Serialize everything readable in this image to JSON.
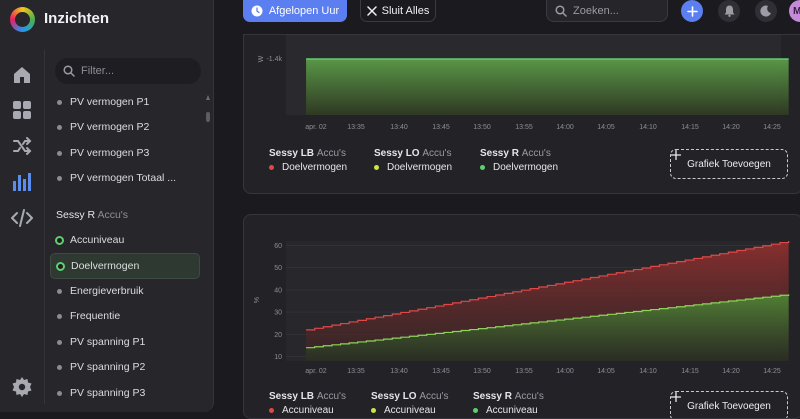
{
  "app": {
    "title": "Inzichten"
  },
  "toolbar": {
    "period_label": "Afgelopen Uur",
    "close_all_label": "Sluit Alles",
    "search_placeholder": "Zoeken...",
    "avatar_initial": "M"
  },
  "sidebar": {
    "filter_placeholder": "Filter...",
    "rail_icons": [
      "home-icon",
      "grid-icon",
      "shuffle-icon",
      "chart-bars-icon",
      "code-icon",
      "gear-icon"
    ],
    "items_top": [
      {
        "label": "PV vermogen P1"
      },
      {
        "label": "PV vermogen P2"
      },
      {
        "label": "PV vermogen P3"
      },
      {
        "label": "PV vermogen Totaal ..."
      }
    ],
    "group": {
      "name": "Sessy R",
      "sub": "Accu's"
    },
    "items_group": [
      {
        "label": "Accuniveau",
        "state": "checked"
      },
      {
        "label": "Doelvermogen",
        "state": "checked-selected"
      },
      {
        "label": "Energieverbruik",
        "state": ""
      },
      {
        "label": "Frequentie",
        "state": ""
      },
      {
        "label": "PV spanning P1",
        "state": ""
      },
      {
        "label": "PV spanning P2",
        "state": ""
      },
      {
        "label": "PV spanning P3",
        "state": ""
      }
    ]
  },
  "cards": [
    {
      "legend": [
        {
          "device": "Sessy LB",
          "group": "Accu's",
          "metric": "Doelvermogen",
          "color": "#e04848"
        },
        {
          "device": "Sessy LO",
          "group": "Accu's",
          "metric": "Doelvermogen",
          "color": "#c7e64a"
        },
        {
          "device": "Sessy R",
          "group": "Accu's",
          "metric": "Doelvermogen",
          "color": "#5fce6e"
        }
      ],
      "add_label": "Grafiek Toevoegen"
    },
    {
      "legend": [
        {
          "device": "Sessy LB",
          "group": "Accu's",
          "metric": "Accuniveau",
          "color": "#e04848"
        },
        {
          "device": "Sessy LO",
          "group": "Accu's",
          "metric": "Accuniveau",
          "color": "#c7e64a"
        },
        {
          "device": "Sessy R",
          "group": "Accu's",
          "metric": "Accuniveau",
          "color": "#5fce6e"
        }
      ],
      "add_label": "Grafiek Toevoegen"
    }
  ],
  "chart_data": [
    {
      "type": "area",
      "ylabel": "W",
      "y_ticks": [
        "-1.4k"
      ],
      "x_ticks": [
        "apr. 02",
        "13:35",
        "13:40",
        "13:45",
        "13:50",
        "13:55",
        "14:00",
        "14:05",
        "14:10",
        "14:15",
        "14:20",
        "14:25"
      ],
      "series": [
        {
          "name": "Sessy R",
          "x": [
            "13:29",
            "14:27"
          ],
          "values": [
            -1400,
            -1400
          ],
          "color": "#5fce6e"
        }
      ]
    },
    {
      "type": "area",
      "ylabel": "%",
      "y_ticks": [
        10,
        20,
        30,
        40,
        50,
        60
      ],
      "ylim": [
        8,
        62
      ],
      "x_ticks": [
        "apr. 02",
        "13:35",
        "13:40",
        "13:45",
        "13:50",
        "13:55",
        "14:00",
        "14:05",
        "14:10",
        "14:15",
        "14:20",
        "14:25"
      ],
      "series": [
        {
          "name": "Sessy LB",
          "x": [
            "13:29",
            "14:27"
          ],
          "values": [
            22,
            62
          ],
          "color": "#e04848"
        },
        {
          "name": "Sessy R",
          "x": [
            "13:29",
            "14:27"
          ],
          "values": [
            14,
            38
          ],
          "color": "#8fd45a"
        }
      ]
    }
  ]
}
